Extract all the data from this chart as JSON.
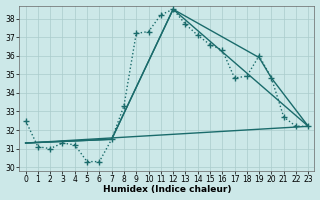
{
  "xlabel": "Humidex (Indice chaleur)",
  "bg_color": "#cce8e8",
  "grid_color": "#aacccc",
  "line_color": "#1a6b6b",
  "xlim": [
    -0.5,
    23.5
  ],
  "ylim": [
    29.8,
    38.7
  ],
  "yticks": [
    30,
    31,
    32,
    33,
    34,
    35,
    36,
    37,
    38
  ],
  "xticks": [
    0,
    1,
    2,
    3,
    4,
    5,
    6,
    7,
    8,
    9,
    10,
    11,
    12,
    13,
    14,
    15,
    16,
    17,
    18,
    19,
    20,
    21,
    22,
    23
  ],
  "series": [
    {
      "x": [
        0,
        1,
        2,
        3,
        4,
        5,
        6,
        7,
        8,
        9,
        10,
        11,
        12,
        13,
        14,
        15,
        16,
        17,
        18,
        19,
        20,
        21,
        22,
        23
      ],
      "y": [
        32.5,
        31.1,
        31.0,
        31.3,
        31.2,
        30.3,
        30.3,
        31.5,
        33.3,
        37.2,
        37.3,
        38.2,
        38.5,
        37.7,
        37.1,
        36.6,
        36.3,
        34.8,
        34.9,
        36.0,
        34.8,
        32.7,
        32.2,
        32.2
      ],
      "marker": "+",
      "linestyle": ":",
      "linewidth": 1.0,
      "markersize": 4
    },
    {
      "x": [
        0,
        7,
        12,
        19,
        20,
        23
      ],
      "y": [
        31.3,
        31.5,
        38.5,
        35.9,
        34.8,
        32.2
      ],
      "marker": null,
      "linestyle": "-",
      "linewidth": 1.0,
      "markersize": 0
    },
    {
      "x": [
        0,
        7,
        12,
        23
      ],
      "y": [
        31.3,
        31.5,
        38.5,
        32.2
      ],
      "marker": null,
      "linestyle": "-",
      "linewidth": 1.0,
      "markersize": 0
    },
    {
      "x": [
        0,
        23
      ],
      "y": [
        31.3,
        32.2
      ],
      "marker": null,
      "linestyle": "-",
      "linewidth": 1.0,
      "markersize": 0
    }
  ]
}
